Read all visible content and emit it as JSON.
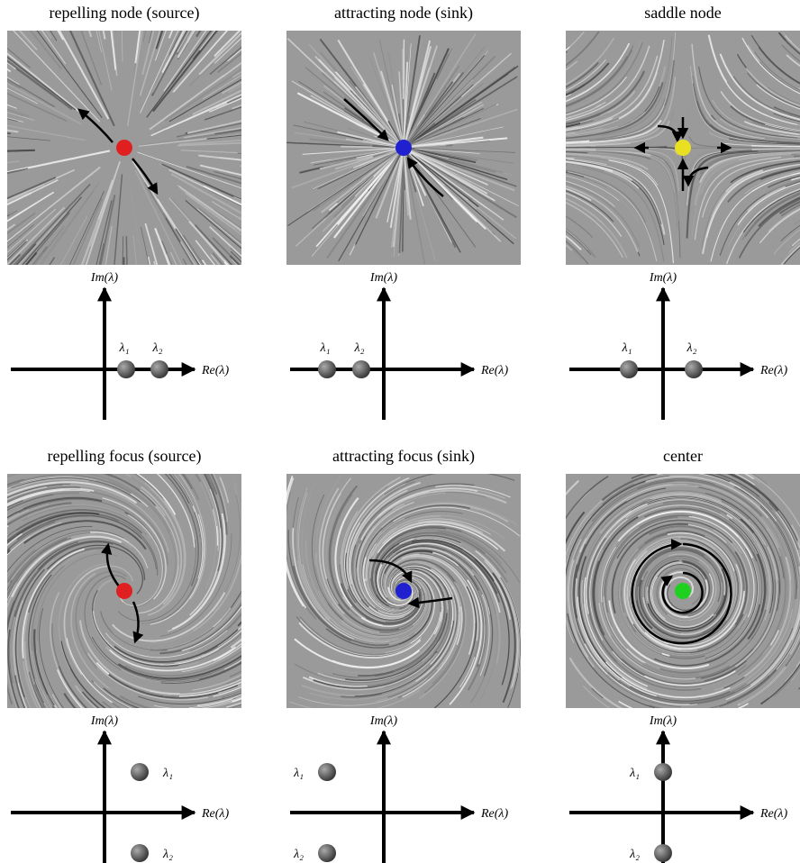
{
  "panels": [
    {
      "title": "repelling node (source)",
      "im_axis": "Im(λ)",
      "re_axis": "Re(λ)",
      "eigenvalues": [
        {
          "label": "λ₁"
        },
        {
          "label": "λ₂"
        }
      ]
    },
    {
      "title": "attracting node (sink)",
      "im_axis": "Im(λ)",
      "re_axis": "Re(λ)",
      "eigenvalues": [
        {
          "label": "λ₁"
        },
        {
          "label": "λ₂"
        }
      ]
    },
    {
      "title": "saddle node",
      "im_axis": "Im(λ)",
      "re_axis": "Re(λ)",
      "eigenvalues": [
        {
          "label": "λ₁"
        },
        {
          "label": "λ₂"
        }
      ]
    },
    {
      "title": "repelling focus (source)",
      "im_axis": "Im(λ)",
      "re_axis": "Re(λ)",
      "eigenvalues": [
        {
          "label": "λ₁"
        },
        {
          "label": "λ₂"
        }
      ]
    },
    {
      "title": "attracting focus (sink)",
      "im_axis": "Im(λ)",
      "re_axis": "Re(λ)",
      "eigenvalues": [
        {
          "label": "λ₁"
        },
        {
          "label": "λ₂"
        }
      ]
    },
    {
      "title": "center",
      "im_axis": "Im(λ)",
      "re_axis": "Re(λ)",
      "eigenvalues": [
        {
          "label": "λ₁"
        },
        {
          "label": "λ₂"
        }
      ]
    }
  ]
}
